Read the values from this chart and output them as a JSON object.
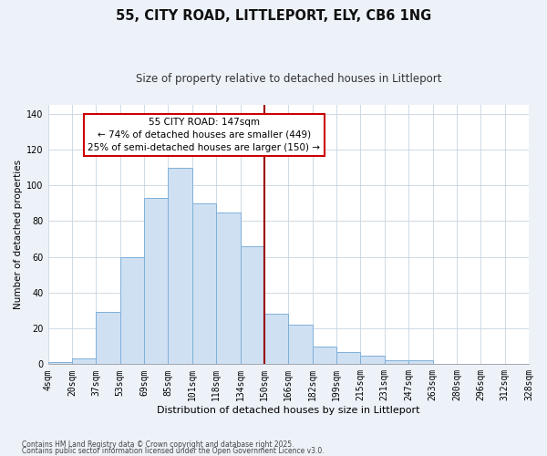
{
  "title": "55, CITY ROAD, LITTLEPORT, ELY, CB6 1NG",
  "subtitle": "Size of property relative to detached houses in Littleport",
  "xlabel": "Distribution of detached houses by size in Littleport",
  "ylabel": "Number of detached properties",
  "bin_labels": [
    "4sqm",
    "20sqm",
    "37sqm",
    "53sqm",
    "69sqm",
    "85sqm",
    "101sqm",
    "118sqm",
    "134sqm",
    "150sqm",
    "166sqm",
    "182sqm",
    "199sqm",
    "215sqm",
    "231sqm",
    "247sqm",
    "263sqm",
    "280sqm",
    "296sqm",
    "312sqm",
    "328sqm"
  ],
  "bar_heights": [
    1,
    3,
    29,
    60,
    93,
    110,
    90,
    85,
    66,
    28,
    22,
    10,
    7,
    5,
    2,
    2,
    0,
    0,
    0,
    0
  ],
  "bar_color": "#cfe0f3",
  "bar_edge_color": "#7fb0d8",
  "plot_bg_color": "#ffffff",
  "fig_bg_color": "#edf2f9",
  "ylim": [
    0,
    145
  ],
  "yticks": [
    0,
    20,
    40,
    60,
    80,
    100,
    120,
    140
  ],
  "vline_x": 9,
  "vline_color": "#990000",
  "annotation_text": "55 CITY ROAD: 147sqm\n← 74% of detached houses are smaller (449)\n25% of semi-detached houses are larger (150) →",
  "annotation_box_color": "#ffffff",
  "annotation_box_edge": "#cc0000",
  "footnote1": "Contains HM Land Registry data © Crown copyright and database right 2025.",
  "footnote2": "Contains public sector information licensed under the Open Government Licence v3.0.",
  "title_fontsize": 10.5,
  "subtitle_fontsize": 8.5,
  "xlabel_fontsize": 8,
  "ylabel_fontsize": 7.5,
  "tick_fontsize": 7,
  "annot_fontsize": 7.5,
  "footnote_fontsize": 5.5
}
